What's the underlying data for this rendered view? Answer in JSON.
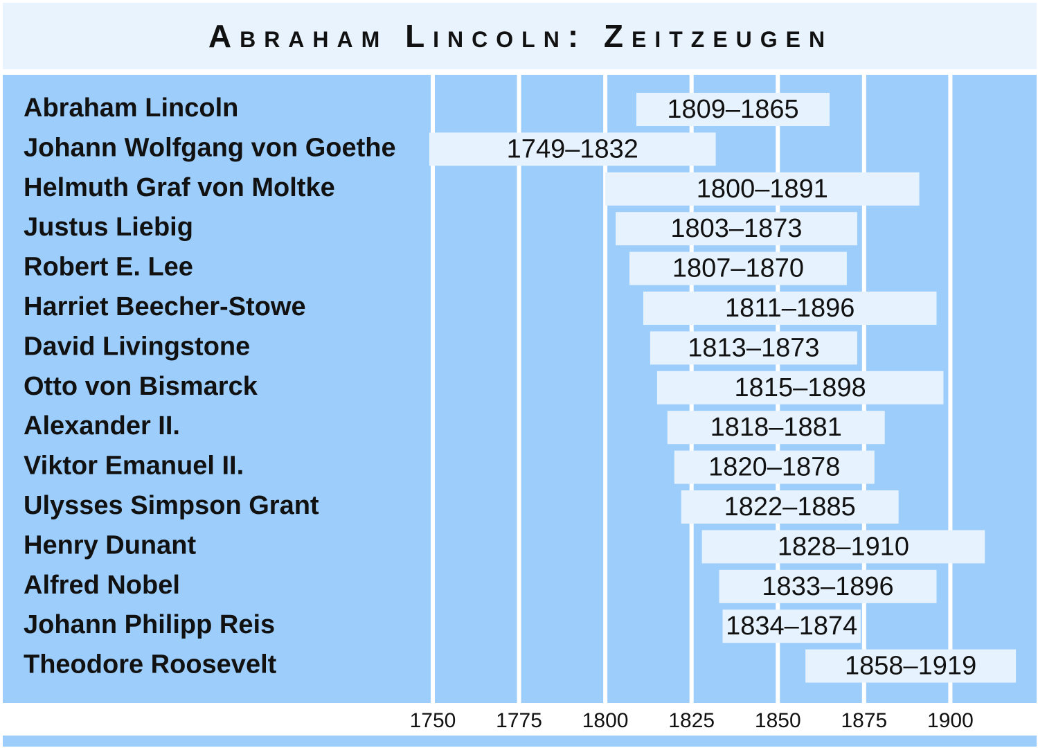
{
  "chart_data": {
    "type": "range-bar",
    "title": "Abraham Lincoln: Zeitzeugen",
    "categories": [
      "Abraham Lincoln",
      "Johann Wolfgang von Goethe",
      "Helmuth Graf von Moltke",
      "Justus Liebig",
      "Robert E. Lee",
      "Harriet Beecher-Stowe",
      "David Livingstone",
      "Otto von Bismarck",
      "Alexander II.",
      "Viktor Emanuel II.",
      "Ulysses Simpson Grant",
      "Henry Dunant",
      "Alfred Nobel",
      "Johann Philipp Reis",
      "Theodore Roosevelt"
    ],
    "start": [
      1809,
      1749,
      1800,
      1803,
      1807,
      1811,
      1813,
      1815,
      1818,
      1820,
      1822,
      1828,
      1833,
      1834,
      1858
    ],
    "end": [
      1865,
      1832,
      1891,
      1873,
      1870,
      1896,
      1873,
      1898,
      1881,
      1878,
      1885,
      1910,
      1896,
      1874,
      1919
    ],
    "value_labels": [
      "1809–1865",
      "1749–1832",
      "1800–1891",
      "1803–1873",
      "1807–1870",
      "1811–1896",
      "1813–1873",
      "1815–1898",
      "1818–1881",
      "1820–1878",
      "1822–1885",
      "1828–1910",
      "1833–1896",
      "1834–1874",
      "1858–1919"
    ],
    "color": "#e6f2fd",
    "xlim": [
      1749,
      1925
    ],
    "xticks": [
      1750,
      1775,
      1800,
      1825,
      1850,
      1875,
      1900
    ],
    "grid": true
  }
}
